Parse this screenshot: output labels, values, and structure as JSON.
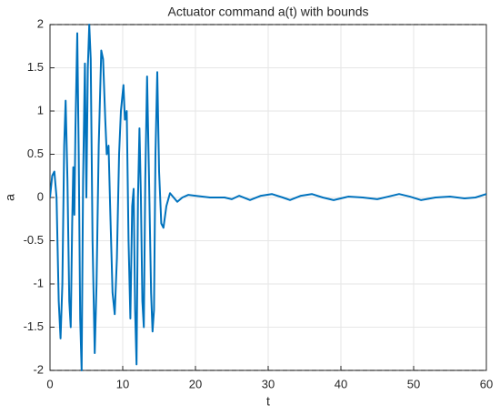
{
  "chart_data": {
    "type": "line",
    "title": "Actuator command a(t) with bounds",
    "xlabel": "t",
    "ylabel": "a",
    "x": [
      0,
      0.3,
      0.6,
      0.9,
      1.2,
      1.45,
      1.7,
      1.95,
      2.15,
      2.4,
      2.65,
      2.85,
      3.05,
      3.2,
      3.35,
      3.5,
      3.75,
      3.95,
      4.15,
      4.35,
      4.55,
      4.8,
      5.0,
      5.2,
      5.4,
      5.6,
      5.85,
      6.15,
      6.4,
      6.7,
      7.05,
      7.3,
      7.6,
      7.8,
      8.05,
      8.3,
      8.6,
      8.9,
      9.2,
      9.5,
      9.75,
      10.1,
      10.3,
      10.55,
      10.8,
      11.05,
      11.3,
      11.5,
      11.7,
      11.9,
      12.1,
      12.3,
      12.5,
      12.7,
      12.9,
      13.1,
      13.35,
      13.6,
      13.9,
      14.1,
      14.3,
      14.5,
      14.75,
      15.0,
      15.3,
      15.6,
      16.0,
      16.5,
      17.0,
      17.5,
      18.2,
      19.0,
      20,
      22,
      24,
      25,
      26,
      27.5,
      29,
      30.5,
      32,
      33,
      34.5,
      36,
      37.5,
      39,
      41,
      43,
      45,
      46.5,
      48,
      49.5,
      51,
      53,
      55,
      57,
      58.5,
      60
    ],
    "series": [
      {
        "name": "a",
        "color": "#0072bd",
        "values": [
          0,
          0.25,
          0.3,
          0,
          -1.2,
          -1.63,
          -1.0,
          0.6,
          1.12,
          0.2,
          -1.2,
          -1.5,
          -0.3,
          0.35,
          -0.2,
          0.8,
          1.9,
          0.5,
          -1.4,
          -2.0,
          0.2,
          1.55,
          0.0,
          1.5,
          2.0,
          1.6,
          -0.5,
          -1.8,
          -1.0,
          0.6,
          1.7,
          1.6,
          0.9,
          0.5,
          0.6,
          -0.2,
          -1.1,
          -1.35,
          -0.7,
          0.5,
          1.0,
          1.3,
          0.9,
          1.0,
          -0.5,
          -1.4,
          -0.1,
          0.1,
          -1.3,
          -1.93,
          0.0,
          0.8,
          0.0,
          -1.2,
          -1.5,
          0.2,
          1.4,
          0.3,
          -1.1,
          -1.55,
          -1.3,
          0.5,
          1.45,
          0.3,
          -0.3,
          -0.35,
          -0.1,
          0.05,
          0.0,
          -0.05,
          0.0,
          0.03,
          0.02,
          0,
          0,
          -0.02,
          0.02,
          -0.03,
          0.02,
          0.04,
          0,
          -0.03,
          0.02,
          0.04,
          0,
          -0.03,
          0.01,
          0,
          -0.02,
          0.01,
          0.04,
          0.01,
          -0.03,
          0,
          0.01,
          -0.01,
          0,
          0.04
        ]
      }
    ],
    "bounds": [
      -2,
      2
    ],
    "xlim": [
      0,
      60
    ],
    "xticks": [
      0,
      10,
      20,
      30,
      40,
      50,
      60
    ],
    "ylim": [
      -2,
      2
    ],
    "yticks": [
      -2,
      -1.5,
      -1,
      -0.5,
      0,
      0.5,
      1,
      1.5,
      2
    ],
    "grid": true
  }
}
